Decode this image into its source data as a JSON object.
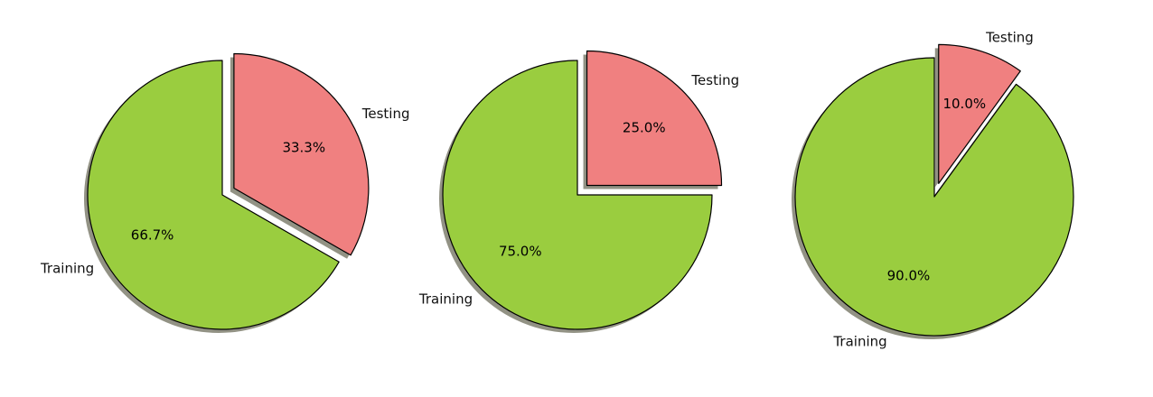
{
  "chart_data": [
    {
      "type": "pie",
      "title": "",
      "slices": [
        {
          "label": "Training",
          "value": 66.7,
          "pct_label": "66.7%",
          "color": "#9acd3f",
          "exploded": false
        },
        {
          "label": "Testing",
          "value": 33.3,
          "pct_label": "33.3%",
          "color": "#f08080",
          "exploded": true
        }
      ],
      "shadow": true,
      "edgecolor": "#000000"
    },
    {
      "type": "pie",
      "title": "",
      "slices": [
        {
          "label": "Training",
          "value": 75.0,
          "pct_label": "75.0%",
          "color": "#9acd3f",
          "exploded": false
        },
        {
          "label": "Testing",
          "value": 25.0,
          "pct_label": "25.0%",
          "color": "#f08080",
          "exploded": true
        }
      ],
      "shadow": true,
      "edgecolor": "#000000"
    },
    {
      "type": "pie",
      "title": "",
      "slices": [
        {
          "label": "Training",
          "value": 90.0,
          "pct_label": "90.0%",
          "color": "#9acd3f",
          "exploded": false
        },
        {
          "label": "Testing",
          "value": 10.0,
          "pct_label": "10.0%",
          "color": "#f08080",
          "exploded": true
        }
      ],
      "shadow": true,
      "edgecolor": "#000000"
    }
  ]
}
